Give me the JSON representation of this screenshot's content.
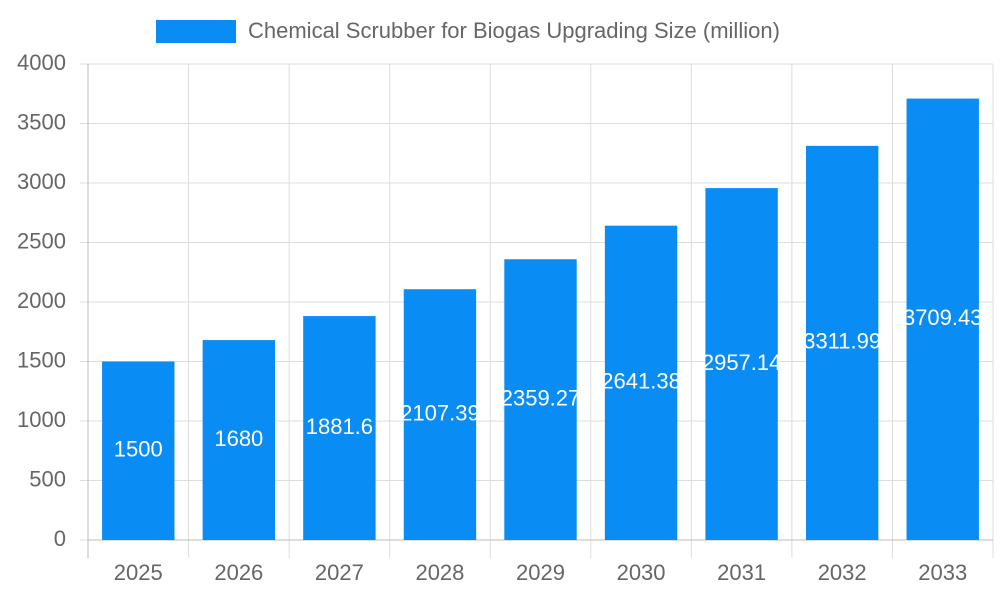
{
  "chart_data": {
    "type": "bar",
    "categories": [
      "2025",
      "2026",
      "2027",
      "2028",
      "2029",
      "2030",
      "2031",
      "2032",
      "2033"
    ],
    "series": [
      {
        "name": "Chemical Scrubber for Biogas Upgrading Size (million)",
        "color": "#0a8cf5",
        "values": [
          1500,
          1680,
          1881.6,
          2107.39,
          2359.27,
          2641.38,
          2957.14,
          3311.99,
          3709.43
        ]
      }
    ],
    "ylim": [
      0,
      4000
    ],
    "yticks": [
      0,
      500,
      1000,
      1500,
      2000,
      2500,
      3000,
      3500,
      4000
    ],
    "grid": true
  }
}
